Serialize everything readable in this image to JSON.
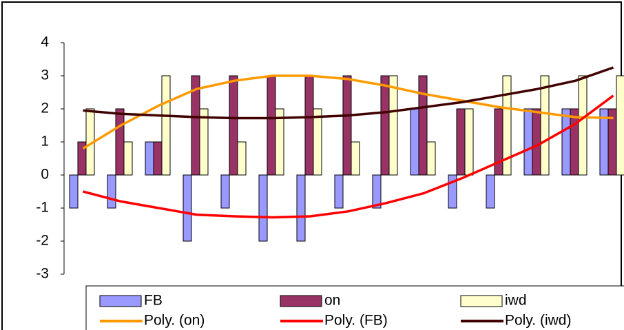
{
  "chart_data": {
    "type": "bar",
    "categories": [
      null,
      null,
      null,
      null,
      null,
      null,
      null,
      null,
      null,
      null,
      null,
      null,
      null,
      null,
      null
    ],
    "series": [
      {
        "name": "FB",
        "color": "#9999ff",
        "values": [
          -1,
          -1,
          1,
          -2,
          -1,
          -2,
          -2,
          -1,
          -1,
          2,
          -1,
          -1,
          2,
          2,
          2
        ]
      },
      {
        "name": "on",
        "color": "#993366",
        "values": [
          1,
          2,
          1,
          3,
          3,
          3,
          3,
          3,
          3,
          3,
          2,
          2,
          2,
          2,
          2
        ]
      },
      {
        "name": "iwd",
        "color": "#ffffcc",
        "values": [
          2,
          1,
          3,
          2,
          1,
          2,
          2,
          1,
          3,
          1,
          2,
          3,
          3,
          3,
          3
        ]
      },
      {
        "name": "Poly. (on)",
        "type": "line",
        "color": "#ff9900",
        "values": [
          0.8,
          1.5,
          2.1,
          2.6,
          2.85,
          3.0,
          3.0,
          2.9,
          2.7,
          2.45,
          2.25,
          2.05,
          1.9,
          1.75,
          1.72
        ]
      },
      {
        "name": "Poly. (FB)",
        "type": "line",
        "color": "#ff0000",
        "values": [
          -0.5,
          -0.8,
          -1.0,
          -1.2,
          -1.25,
          -1.28,
          -1.25,
          -1.1,
          -0.85,
          -0.55,
          -0.1,
          0.4,
          0.9,
          1.55,
          2.4
        ]
      },
      {
        "name": "Poly. (iwd)",
        "type": "line",
        "color": "#400000",
        "values": [
          1.95,
          1.85,
          1.8,
          1.75,
          1.72,
          1.72,
          1.75,
          1.8,
          1.9,
          2.05,
          2.2,
          2.4,
          2.6,
          2.85,
          3.25
        ]
      }
    ],
    "ylim": [
      -3,
      4
    ],
    "yticks": [
      -3,
      -2,
      -1,
      0,
      1,
      2,
      3,
      4
    ],
    "grid": false
  }
}
